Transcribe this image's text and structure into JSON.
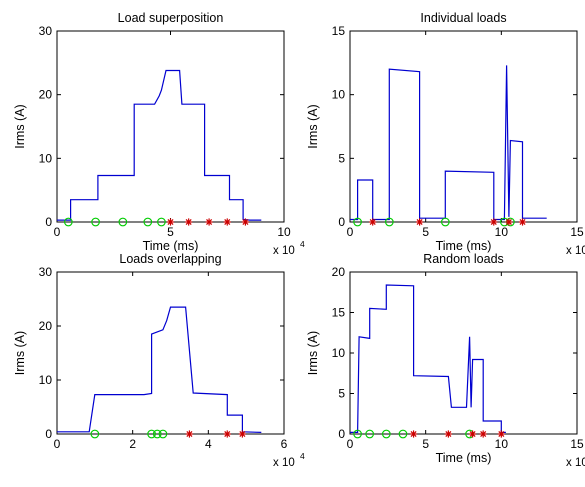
{
  "chart_data": [
    {
      "type": "line",
      "title": "Load superposition",
      "xlabel": "Time (ms)",
      "ylabel": "Irms (A)",
      "xlim": [
        0,
        10
      ],
      "ylim": [
        0,
        30
      ],
      "xticks": [
        0,
        5,
        10
      ],
      "yticks": [
        0,
        10,
        20,
        30
      ],
      "x_multiplier": {
        "base": "x 10",
        "exp": "4"
      },
      "series": [
        {
          "line": [
            [
              0,
              0.3
            ],
            [
              0.6,
              0.3
            ],
            [
              0.6,
              3.5
            ],
            [
              1.8,
              3.5
            ],
            [
              1.8,
              7.3
            ],
            [
              3.4,
              7.3
            ],
            [
              3.4,
              18.5
            ],
            [
              4.3,
              18.5
            ],
            [
              4.5,
              19.8
            ],
            [
              4.6,
              20.7
            ],
            [
              4.8,
              23.8
            ],
            [
              5.4,
              23.8
            ],
            [
              5.5,
              18.5
            ],
            [
              6.5,
              18.5
            ],
            [
              6.5,
              7.3
            ],
            [
              7.6,
              7.3
            ],
            [
              7.6,
              3.5
            ],
            [
              8.2,
              3.5
            ],
            [
              8.2,
              0.4
            ],
            [
              8.5,
              0.3
            ],
            [
              9.0,
              0.3
            ]
          ],
          "on_events": [
            0.5,
            1.7,
            2.9,
            4.0,
            4.6
          ],
          "off_events": [
            5.0,
            5.8,
            6.7,
            7.5,
            8.3
          ]
        }
      ]
    },
    {
      "type": "line",
      "title": "Individual loads",
      "xlabel": "Time (ms)",
      "ylabel": "Irms (A)",
      "xlim": [
        0,
        15
      ],
      "ylim": [
        0,
        15
      ],
      "xticks": [
        0,
        5,
        10,
        15
      ],
      "yticks": [
        0,
        5,
        10,
        15
      ],
      "x_multiplier": {
        "base": "x 10",
        "exp": "4"
      },
      "series": [
        {
          "line": [
            [
              0,
              0.2
            ],
            [
              0.5,
              0.2
            ],
            [
              0.5,
              3.3
            ],
            [
              1.5,
              3.3
            ],
            [
              1.5,
              0.2
            ],
            [
              2.6,
              0.2
            ],
            [
              2.6,
              12.0
            ],
            [
              4.6,
              11.8
            ],
            [
              4.6,
              0.3
            ],
            [
              6.3,
              0.3
            ],
            [
              6.3,
              4.0
            ],
            [
              9.5,
              3.9
            ],
            [
              9.5,
              0.2
            ],
            [
              10.2,
              0.2
            ],
            [
              10.35,
              12.3
            ],
            [
              10.5,
              0.4
            ],
            [
              10.6,
              6.4
            ],
            [
              11.4,
              6.3
            ],
            [
              11.4,
              0.3
            ],
            [
              13.0,
              0.3
            ]
          ],
          "on_events": [
            0.5,
            2.6,
            6.3,
            10.2,
            10.6
          ],
          "off_events": [
            1.5,
            4.6,
            9.5,
            10.5,
            11.4
          ]
        }
      ]
    },
    {
      "type": "line",
      "title": "Loads overlapping",
      "xlabel": "",
      "ylabel": "Irms (A)",
      "xlim": [
        0,
        6
      ],
      "ylim": [
        0,
        30
      ],
      "xticks": [
        0,
        2,
        4,
        6
      ],
      "yticks": [
        0,
        10,
        20,
        30
      ],
      "x_multiplier": {
        "base": "x 10",
        "exp": "4"
      },
      "series": [
        {
          "line": [
            [
              0,
              0.4
            ],
            [
              0.85,
              0.4
            ],
            [
              1.0,
              7.3
            ],
            [
              2.3,
              7.3
            ],
            [
              2.5,
              7.5
            ],
            [
              2.5,
              18.5
            ],
            [
              2.8,
              19.3
            ],
            [
              2.9,
              21.0
            ],
            [
              3.0,
              23.5
            ],
            [
              3.4,
              23.5
            ],
            [
              3.6,
              7.6
            ],
            [
              4.5,
              7.3
            ],
            [
              4.5,
              3.5
            ],
            [
              4.9,
              3.5
            ],
            [
              4.9,
              0.4
            ],
            [
              5.4,
              0.3
            ]
          ],
          "on_events": [
            1.0,
            2.5,
            2.65,
            2.8
          ],
          "off_events": [
            3.5,
            4.5,
            4.9
          ]
        }
      ]
    },
    {
      "type": "line",
      "title": "Random loads",
      "xlabel": "Time (ms)",
      "ylabel": "Irms (A)",
      "xlim": [
        0,
        15
      ],
      "ylim": [
        0,
        20
      ],
      "xticks": [
        0,
        5,
        10,
        15
      ],
      "yticks": [
        0,
        5,
        10,
        15,
        20
      ],
      "x_multiplier": {
        "base": "x 10",
        "exp": "4"
      },
      "series": [
        {
          "line": [
            [
              0,
              0.2
            ],
            [
              0.5,
              0.2
            ],
            [
              0.6,
              12.0
            ],
            [
              1.3,
              11.8
            ],
            [
              1.3,
              15.5
            ],
            [
              2.4,
              15.4
            ],
            [
              2.4,
              18.4
            ],
            [
              4.2,
              18.3
            ],
            [
              4.2,
              7.2
            ],
            [
              6.5,
              7.1
            ],
            [
              6.7,
              3.3
            ],
            [
              7.7,
              3.3
            ],
            [
              7.9,
              12.0
            ],
            [
              8.0,
              3.3
            ],
            [
              8.1,
              9.2
            ],
            [
              8.8,
              9.2
            ],
            [
              8.8,
              1.6
            ],
            [
              10.0,
              1.6
            ],
            [
              10.0,
              0.2
            ],
            [
              10.3,
              0.2
            ]
          ],
          "on_events": [
            0.5,
            1.3,
            2.4,
            3.5,
            7.9
          ],
          "off_events": [
            4.2,
            6.5,
            8.1,
            8.8,
            10.0
          ]
        }
      ]
    }
  ],
  "colors": {
    "line": "#0000d0",
    "on_marker": "#00cc00",
    "off_marker": "#cc0000",
    "axis": "#000000"
  }
}
